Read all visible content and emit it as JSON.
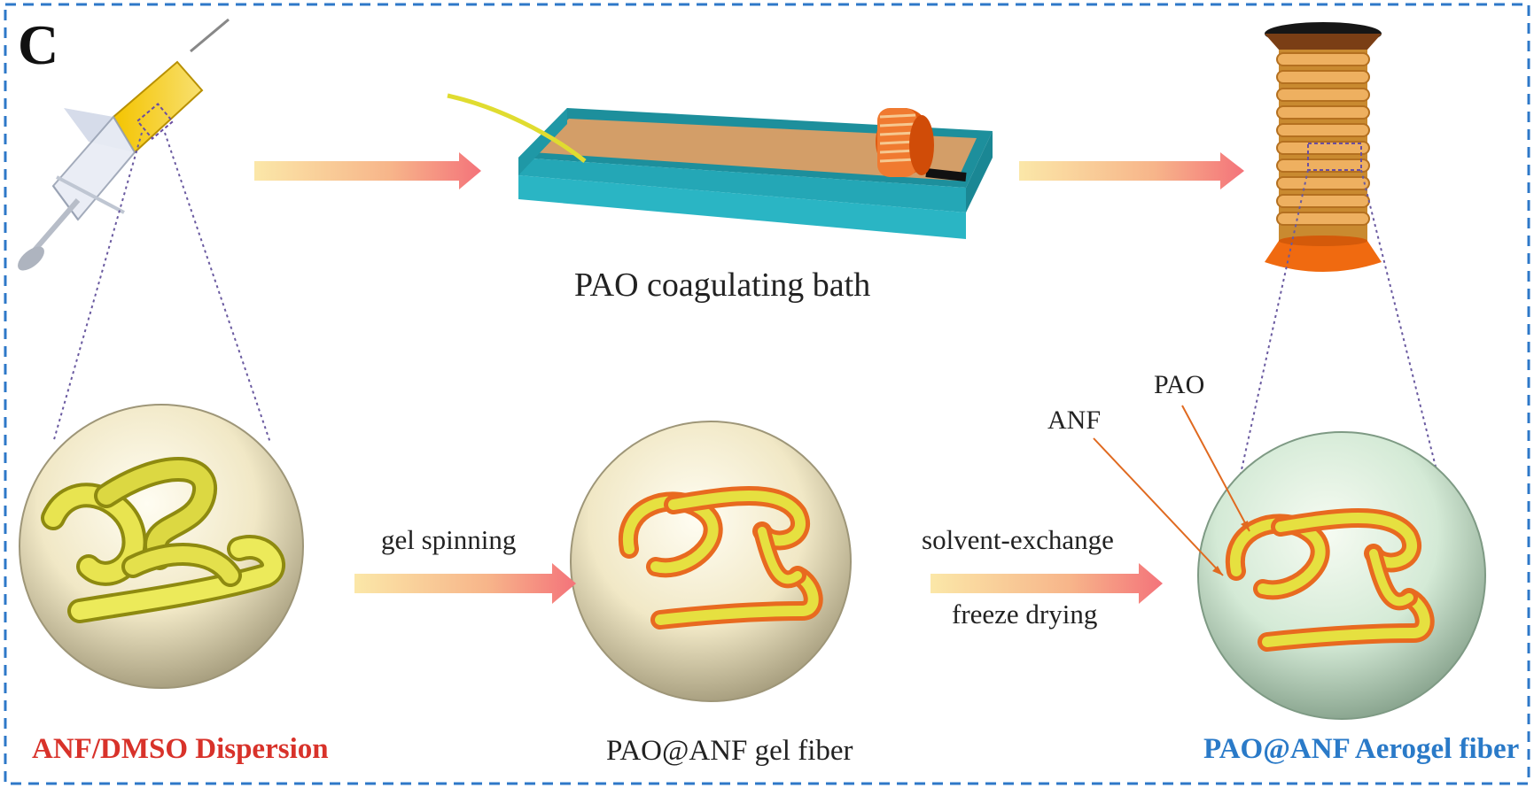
{
  "panel_label": "C",
  "labels": {
    "bath": "PAO coagulating bath",
    "step1": "gel spinning",
    "step2a": "solvent-exchange",
    "step2b": "freeze drying",
    "anf": "ANF",
    "pao": "PAO",
    "dispersion": "ANF/DMSO Dispersion",
    "gel_fiber": "PAO@ANF gel fiber",
    "aerogel_fiber": "PAO@ANF Aerogel fiber"
  },
  "colors": {
    "frame": "#2e78c8",
    "dispersion_text": "#d8322a",
    "aerogel_text": "#2a7ac8",
    "bath_wall": "#2ab8c8",
    "bath_liquid": "#d09a64",
    "fiber_yellow": "#e6e040",
    "fiber_outline": "#e86a20",
    "spool_orange": "#f06a10"
  }
}
